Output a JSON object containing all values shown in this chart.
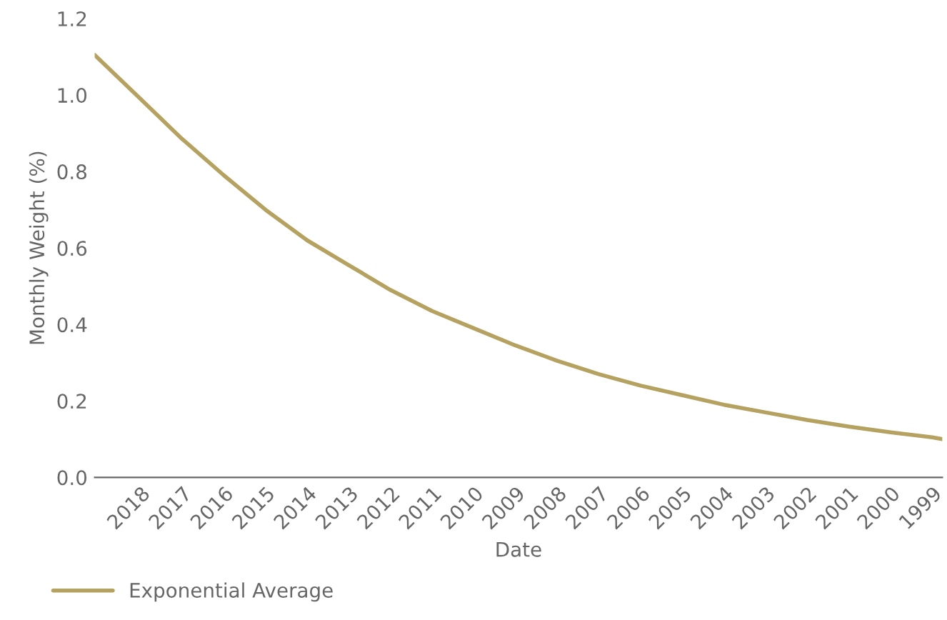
{
  "chart_data": {
    "type": "line",
    "xlabel": "Date",
    "ylabel": "Monthly Weight (%)",
    "x": [
      2019.1,
      2018,
      2017,
      2016,
      2015,
      2014,
      2013,
      2012,
      2011,
      2010,
      2009,
      2008,
      2007,
      2006,
      2005,
      2004,
      2003,
      2002,
      2001,
      2000,
      1999,
      1998.76
    ],
    "series": [
      {
        "name": "Exponential Average",
        "color": "#b5a160",
        "values": [
          1.105,
          0.99,
          0.885,
          0.79,
          0.7,
          0.62,
          0.555,
          0.49,
          0.435,
          0.39,
          0.345,
          0.305,
          0.27,
          0.24,
          0.215,
          0.19,
          0.17,
          0.15,
          0.133,
          0.118,
          0.105,
          0.1
        ]
      }
    ],
    "xlim": [
      2019.1,
      1998.76
    ],
    "xticks": [
      2018,
      2017,
      2016,
      2015,
      2014,
      2013,
      2012,
      2011,
      2010,
      2009,
      2008,
      2007,
      2006,
      2005,
      2004,
      2003,
      2002,
      2001,
      2000,
      1999
    ],
    "ylim": [
      0,
      1.2
    ],
    "yticks": [
      {
        "value": 0,
        "label": "0.0"
      },
      0.2,
      0.4,
      0.6,
      0.8,
      {
        "value": 1,
        "label": "1.0"
      },
      1.2
    ],
    "grid": false,
    "legend": "bottom left",
    "marker": "none",
    "line_style": "solid"
  }
}
